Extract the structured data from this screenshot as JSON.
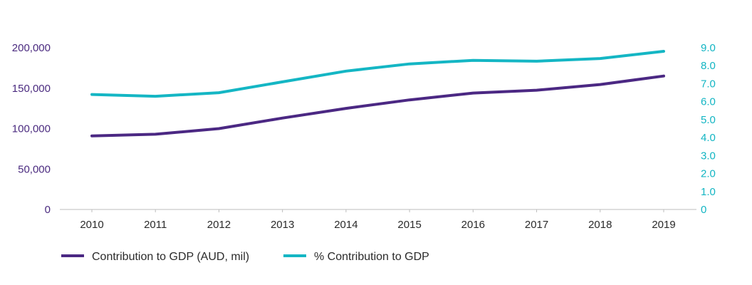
{
  "chart_data": {
    "type": "line",
    "title": "",
    "categories": [
      "2010",
      "2011",
      "2012",
      "2013",
      "2014",
      "2015",
      "2016",
      "2017",
      "2018",
      "2019"
    ],
    "series": [
      {
        "name": "Contribution to GDP (AUD, mil)",
        "axis": "left",
        "color": "#4b2883",
        "values": [
          91000,
          93000,
          100000,
          113000,
          125000,
          135500,
          144000,
          147500,
          154500,
          165000
        ]
      },
      {
        "name": "% Contribution to GDP",
        "axis": "right",
        "color": "#14b6c4",
        "values": [
          6.4,
          6.3,
          6.5,
          7.1,
          7.7,
          8.1,
          8.3,
          8.25,
          8.4,
          8.8
        ]
      }
    ],
    "y_left": {
      "min": 0,
      "max": 200000,
      "ticks": [
        "0",
        "50,000",
        "100,000",
        "150,000",
        "200,000"
      ],
      "color": "#4a2a7f"
    },
    "y_right": {
      "min": 0,
      "max": 9,
      "ticks": [
        "0",
        "1.0",
        "2.0",
        "3.0",
        "4.0",
        "5.0",
        "6.0",
        "7.0",
        "8.0",
        "9.0"
      ],
      "color": "#12b5c3"
    },
    "grid": false,
    "legend_position": "bottom-left"
  }
}
